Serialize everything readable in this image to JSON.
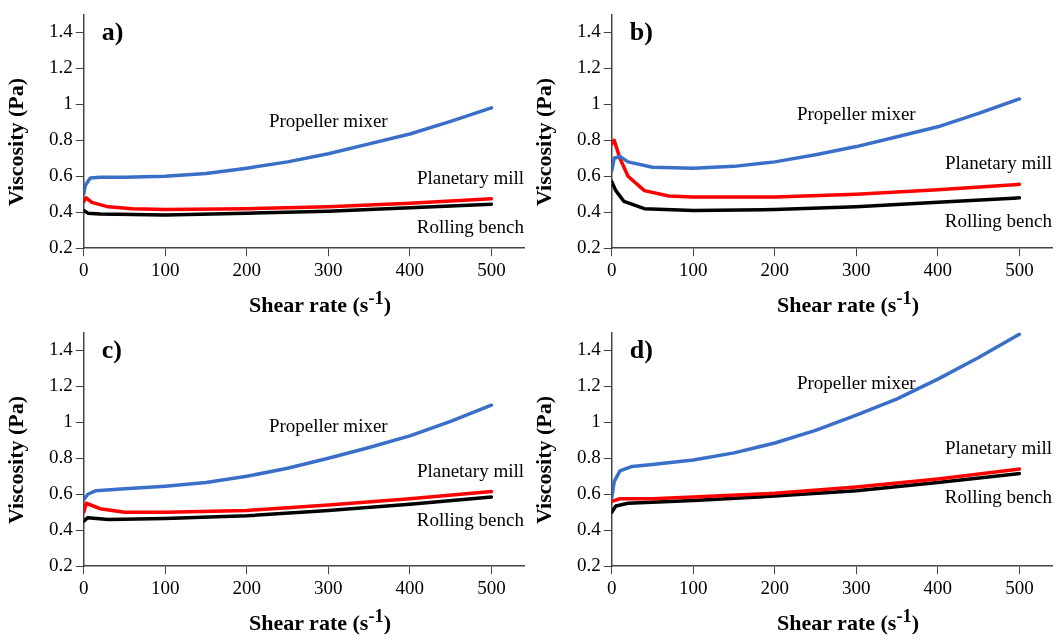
{
  "chart_data": [
    {
      "type": "line",
      "title": "a)",
      "xlabel": "Shear rate (s$^{-1}$)",
      "ylabel": "Viscosity (Pa)",
      "xlim": [
        0,
        540
      ],
      "xticks": [
        0,
        100,
        200,
        300,
        400,
        500
      ],
      "ylim": [
        0.2,
        1.5
      ],
      "yticks": [
        0.2,
        0.4,
        0.6,
        0.8,
        1,
        1.2,
        1.4
      ],
      "grid": false,
      "legend": false,
      "marker": "none",
      "line_style": "solid",
      "series": [
        {
          "name": "Propeller mixer",
          "color": "#3a6fc8",
          "x": [
            0,
            2,
            8,
            20,
            50,
            100,
            150,
            200,
            250,
            300,
            350,
            400,
            450,
            500
          ],
          "values": [
            0.5,
            0.55,
            0.59,
            0.595,
            0.595,
            0.6,
            0.615,
            0.645,
            0.68,
            0.725,
            0.78,
            0.835,
            0.905,
            0.98
          ]
        },
        {
          "name": "Planetary mill",
          "color": "#ff0000",
          "x": [
            0,
            3,
            10,
            30,
            60,
            100,
            200,
            300,
            400,
            500
          ],
          "values": [
            0.46,
            0.48,
            0.455,
            0.43,
            0.42,
            0.415,
            0.42,
            0.43,
            0.45,
            0.475
          ]
        },
        {
          "name": "Rolling bench",
          "color": "#000000",
          "x": [
            0,
            5,
            20,
            100,
            200,
            300,
            400,
            500
          ],
          "values": [
            0.41,
            0.395,
            0.39,
            0.385,
            0.395,
            0.405,
            0.425,
            0.445
          ]
        }
      ]
    },
    {
      "type": "line",
      "title": "b)",
      "xlabel": "Shear rate (s$^{-1}$)",
      "ylabel": "Viscosity (Pa)",
      "xlim": [
        0,
        540
      ],
      "xticks": [
        0,
        100,
        200,
        300,
        400,
        500
      ],
      "ylim": [
        0.2,
        1.5
      ],
      "yticks": [
        0.2,
        0.4,
        0.6,
        0.8,
        1,
        1.2,
        1.4
      ],
      "grid": false,
      "legend": false,
      "marker": "none",
      "line_style": "solid",
      "series": [
        {
          "name": "Propeller mixer",
          "color": "#3a6fc8",
          "x": [
            0,
            3,
            10,
            20,
            50,
            100,
            150,
            200,
            250,
            300,
            350,
            400,
            450,
            500
          ],
          "values": [
            0.63,
            0.7,
            0.71,
            0.68,
            0.65,
            0.645,
            0.655,
            0.68,
            0.72,
            0.765,
            0.82,
            0.875,
            0.95,
            1.03
          ]
        },
        {
          "name": "Planetary mill",
          "color": "#ff0000",
          "x": [
            0,
            3,
            10,
            20,
            40,
            70,
            100,
            200,
            300,
            400,
            500
          ],
          "values": [
            0.78,
            0.8,
            0.7,
            0.6,
            0.52,
            0.49,
            0.485,
            0.485,
            0.5,
            0.525,
            0.555
          ]
        },
        {
          "name": "Rolling bench",
          "color": "#000000",
          "x": [
            0,
            5,
            15,
            40,
            100,
            200,
            300,
            400,
            500
          ],
          "values": [
            0.57,
            0.52,
            0.46,
            0.42,
            0.41,
            0.415,
            0.43,
            0.455,
            0.48
          ]
        }
      ]
    },
    {
      "type": "line",
      "title": "c)",
      "xlabel": "Shear rate (s$^{-1}$)",
      "ylabel": "Viscosity (Pa)",
      "xlim": [
        0,
        540
      ],
      "xticks": [
        0,
        100,
        200,
        300,
        400,
        500
      ],
      "ylim": [
        0.2,
        1.5
      ],
      "yticks": [
        0.2,
        0.4,
        0.6,
        0.8,
        1,
        1.2,
        1.4
      ],
      "grid": false,
      "legend": false,
      "marker": "none",
      "line_style": "solid",
      "series": [
        {
          "name": "Propeller mixer",
          "color": "#3a6fc8",
          "x": [
            0,
            5,
            15,
            50,
            100,
            150,
            200,
            250,
            300,
            350,
            400,
            450,
            500
          ],
          "values": [
            0.57,
            0.6,
            0.62,
            0.63,
            0.645,
            0.665,
            0.7,
            0.745,
            0.8,
            0.86,
            0.925,
            1.005,
            1.095
          ]
        },
        {
          "name": "Planetary mill",
          "color": "#ff0000",
          "x": [
            0,
            3,
            20,
            50,
            100,
            200,
            300,
            400,
            500
          ],
          "values": [
            0.5,
            0.55,
            0.52,
            0.5,
            0.5,
            0.51,
            0.54,
            0.575,
            0.615
          ]
        },
        {
          "name": "Rolling bench",
          "color": "#000000",
          "x": [
            0,
            5,
            30,
            100,
            200,
            300,
            400,
            500
          ],
          "values": [
            0.45,
            0.47,
            0.46,
            0.465,
            0.48,
            0.51,
            0.545,
            0.585
          ]
        }
      ]
    },
    {
      "type": "line",
      "title": "d)",
      "xlabel": "Shear rate (s$^{-1}$)",
      "ylabel": "Viscosity (Pa)",
      "xlim": [
        0,
        540
      ],
      "xticks": [
        0,
        100,
        200,
        300,
        400,
        500
      ],
      "ylim": [
        0.2,
        1.5
      ],
      "yticks": [
        0.2,
        0.4,
        0.6,
        0.8,
        1,
        1.2,
        1.4
      ],
      "grid": false,
      "legend": false,
      "marker": "none",
      "line_style": "solid",
      "series": [
        {
          "name": "Propeller mixer",
          "color": "#3a6fc8",
          "x": [
            0,
            3,
            10,
            25,
            50,
            100,
            150,
            200,
            250,
            300,
            350,
            400,
            450,
            500
          ],
          "values": [
            0.58,
            0.67,
            0.73,
            0.755,
            0.765,
            0.79,
            0.83,
            0.885,
            0.955,
            1.04,
            1.13,
            1.24,
            1.36,
            1.49
          ]
        },
        {
          "name": "Planetary mill",
          "color": "#ff0000",
          "x": [
            0,
            10,
            50,
            100,
            200,
            300,
            400,
            500
          ],
          "values": [
            0.56,
            0.575,
            0.575,
            0.585,
            0.605,
            0.64,
            0.685,
            0.74
          ]
        },
        {
          "name": "Rolling bench",
          "color": "#000000",
          "x": [
            0,
            5,
            20,
            100,
            200,
            300,
            400,
            500
          ],
          "values": [
            0.5,
            0.535,
            0.55,
            0.565,
            0.59,
            0.62,
            0.665,
            0.715
          ]
        }
      ]
    }
  ]
}
